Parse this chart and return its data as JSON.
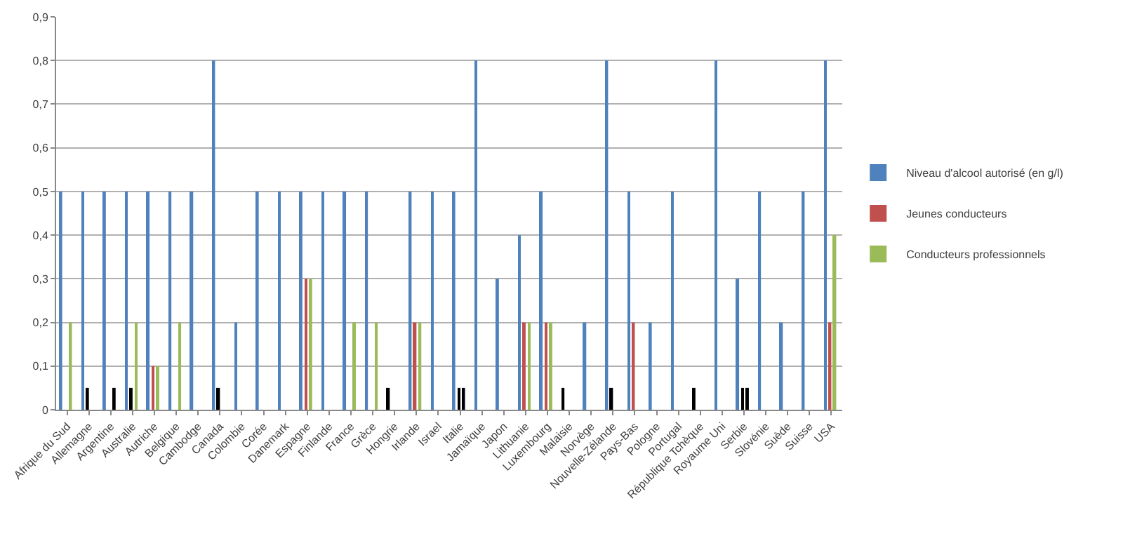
{
  "chart_data": {
    "type": "bar",
    "categories": [
      "Afrique du Sud",
      "Allemagne",
      "Argentine",
      "Australie",
      "Autriche",
      "Belgique",
      "Cambodge",
      "Canada",
      "Colombie",
      "Corée",
      "Danemark",
      "Espagne",
      "Finlande",
      "France",
      "Grèce",
      "Hongrie",
      "Irlande",
      "Israel",
      "Italie",
      "Jamaïque",
      "Japon",
      "Lithuanie",
      "Luxembourg",
      "Malaisie",
      "Norvège",
      "Nouvelle-Zélande",
      "Pays-Bas",
      "Pologne",
      "Portugal",
      "République Tchèque",
      "Royaume Uni",
      "Serbie",
      "Slovénie",
      "Suède",
      "Suisse",
      "USA"
    ],
    "series": [
      {
        "name": "Niveau d'alcool autorisé (en g/l)",
        "color": "#4f81bd",
        "values": [
          0.5,
          0.5,
          0.5,
          0.5,
          0.5,
          0.5,
          0.5,
          0.8,
          0.2,
          0.5,
          0.5,
          0.5,
          0.5,
          0.5,
          0.5,
          0.05,
          0.5,
          0.5,
          0.5,
          0.8,
          0.3,
          0.4,
          0.5,
          0.05,
          0.2,
          0.8,
          0.5,
          0.2,
          0.5,
          0.05,
          0.8,
          0.3,
          0.5,
          0.2,
          0.5,
          0.8
        ],
        "colors": [
          "#4f81bd",
          "#4f81bd",
          "#4f81bd",
          "#4f81bd",
          "#4f81bd",
          "#4f81bd",
          "#4f81bd",
          "#4f81bd",
          "#4f81bd",
          "#4f81bd",
          "#4f81bd",
          "#4f81bd",
          "#4f81bd",
          "#4f81bd",
          "#4f81bd",
          "#000000",
          "#4f81bd",
          "#4f81bd",
          "#4f81bd",
          "#4f81bd",
          "#4f81bd",
          "#4f81bd",
          "#4f81bd",
          "#000000",
          "#4f81bd",
          "#4f81bd",
          "#4f81bd",
          "#4f81bd",
          "#4f81bd",
          "#000000",
          "#4f81bd",
          "#4f81bd",
          "#4f81bd",
          "#4f81bd",
          "#4f81bd",
          "#4f81bd"
        ]
      },
      {
        "name": "Jeunes conducteurs",
        "color": "#c0504d",
        "values": [
          null,
          0.05,
          null,
          0.05,
          0.1,
          null,
          null,
          0.05,
          null,
          null,
          null,
          0.3,
          null,
          null,
          null,
          null,
          0.2,
          null,
          0.05,
          null,
          null,
          0.2,
          0.2,
          null,
          null,
          0.05,
          0.2,
          null,
          null,
          null,
          null,
          0.05,
          null,
          null,
          null,
          0.2
        ],
        "colors": [
          "#c0504d",
          "#000000",
          "#c0504d",
          "#000000",
          "#c0504d",
          "#c0504d",
          "#c0504d",
          "#000000",
          "#c0504d",
          "#c0504d",
          "#c0504d",
          "#c0504d",
          "#c0504d",
          "#c0504d",
          "#c0504d",
          "#c0504d",
          "#c0504d",
          "#c0504d",
          "#000000",
          "#c0504d",
          "#c0504d",
          "#c0504d",
          "#c0504d",
          "#c0504d",
          "#c0504d",
          "#000000",
          "#c0504d",
          "#c0504d",
          "#c0504d",
          "#c0504d",
          "#c0504d",
          "#000000",
          "#c0504d",
          "#c0504d",
          "#c0504d",
          "#c0504d"
        ]
      },
      {
        "name": "Conducteurs professionnels",
        "color": "#9bbb59",
        "values": [
          0.2,
          null,
          0.05,
          0.2,
          0.1,
          0.2,
          null,
          null,
          null,
          null,
          null,
          0.3,
          null,
          0.2,
          0.2,
          null,
          0.2,
          null,
          0.05,
          null,
          null,
          0.2,
          0.2,
          null,
          null,
          null,
          null,
          null,
          null,
          null,
          null,
          0.05,
          null,
          null,
          null,
          0.4
        ],
        "colors": [
          "#9bbb59",
          "#9bbb59",
          "#000000",
          "#9bbb59",
          "#9bbb59",
          "#9bbb59",
          "#9bbb59",
          "#9bbb59",
          "#9bbb59",
          "#9bbb59",
          "#9bbb59",
          "#9bbb59",
          "#9bbb59",
          "#9bbb59",
          "#9bbb59",
          "#9bbb59",
          "#9bbb59",
          "#9bbb59",
          "#000000",
          "#9bbb59",
          "#9bbb59",
          "#9bbb59",
          "#9bbb59",
          "#9bbb59",
          "#9bbb59",
          "#9bbb59",
          "#9bbb59",
          "#9bbb59",
          "#9bbb59",
          "#9bbb59",
          "#9bbb59",
          "#000000",
          "#9bbb59",
          "#9bbb59",
          "#9bbb59",
          "#9bbb59"
        ]
      }
    ],
    "ylim": [
      0,
      0.9
    ],
    "yticks": [
      0,
      {
        "value": 0.1,
        "label": "0,1"
      },
      {
        "value": 0.2,
        "label": "0,2"
      },
      {
        "value": 0.3,
        "label": "0,3"
      },
      {
        "value": 0.4,
        "label": "0,4"
      },
      {
        "value": 0.5,
        "label": "0,5"
      },
      {
        "value": 0.6,
        "label": "0,6"
      },
      {
        "value": 0.7,
        "label": "0,7"
      },
      {
        "value": 0.8,
        "label": "0,8"
      },
      {
        "value": 0.9,
        "label": "0,9"
      }
    ],
    "grid": "y",
    "legend": "right"
  }
}
